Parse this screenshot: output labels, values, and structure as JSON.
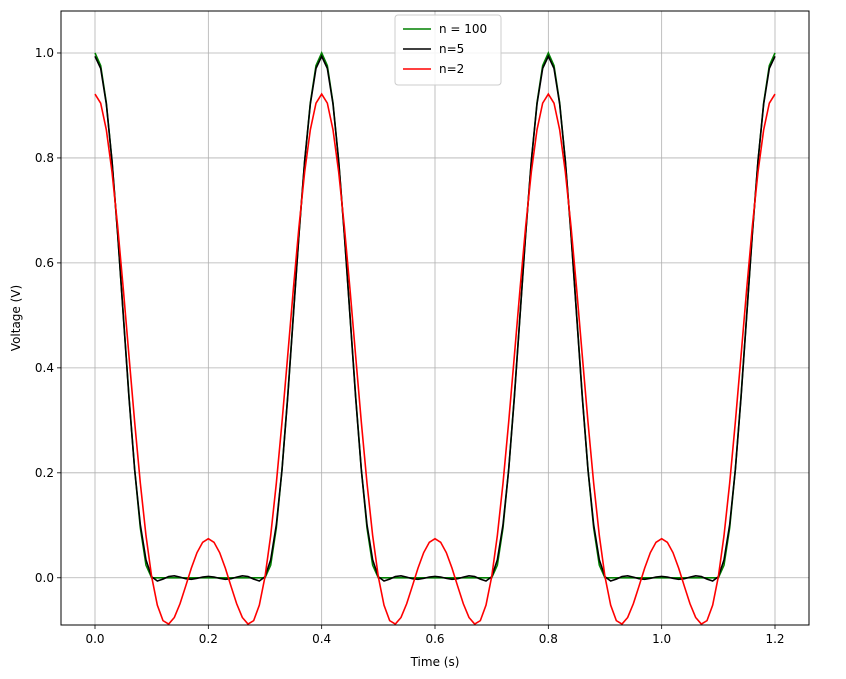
{
  "chart_data": {
    "type": "line",
    "title": "",
    "xlabel": "Time (s)",
    "ylabel": "Voltage (V)",
    "xlim": [
      -0.06,
      1.26
    ],
    "ylim": [
      -0.09,
      1.08
    ],
    "xticks": [
      0.0,
      0.2,
      0.4,
      0.6,
      0.8,
      1.0,
      1.2
    ],
    "xtick_labels": [
      "0.0",
      "0.2",
      "0.4",
      "0.6",
      "0.8",
      "1.0",
      "1.2"
    ],
    "yticks": [
      0.0,
      0.2,
      0.4,
      0.6,
      0.8,
      1.0
    ],
    "ytick_labels": [
      "0.0",
      "0.2",
      "0.4",
      "0.6",
      "0.8",
      "1.0"
    ],
    "grid": true,
    "legend_position": "top-center",
    "period": 0.4,
    "sample_count": 121,
    "x_range": [
      0.0,
      1.2
    ],
    "series": [
      {
        "name": "n = 100",
        "color": "#008000",
        "one_period": [
          [
            0.0,
            1.0
          ],
          [
            0.01,
            0.976
          ],
          [
            0.02,
            0.905
          ],
          [
            0.03,
            0.794
          ],
          [
            0.04,
            0.655
          ],
          [
            0.05,
            0.5
          ],
          [
            0.06,
            0.345
          ],
          [
            0.07,
            0.206
          ],
          [
            0.08,
            0.095
          ],
          [
            0.09,
            0.024
          ],
          [
            0.1,
            0.0
          ],
          [
            0.3,
            0.0
          ],
          [
            0.31,
            0.024
          ],
          [
            0.32,
            0.095
          ],
          [
            0.33,
            0.206
          ],
          [
            0.34,
            0.345
          ],
          [
            0.35,
            0.5
          ],
          [
            0.36,
            0.655
          ],
          [
            0.37,
            0.794
          ],
          [
            0.38,
            0.905
          ],
          [
            0.39,
            0.976
          ],
          [
            0.4,
            1.0
          ]
        ]
      },
      {
        "name": "n=5",
        "color": "#000000",
        "harmonics": 5
      },
      {
        "name": "n=2",
        "color": "#ff0000",
        "harmonics": 2
      }
    ]
  }
}
